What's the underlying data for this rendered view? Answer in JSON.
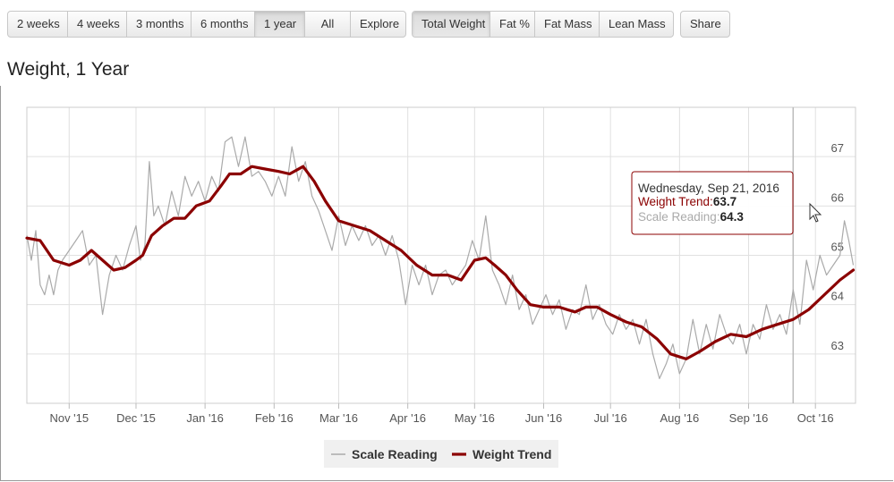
{
  "toolbar": {
    "range_buttons": [
      {
        "label": "2 weeks",
        "active": false
      },
      {
        "label": "4 weeks",
        "active": false
      },
      {
        "label": "3 months",
        "active": false
      },
      {
        "label": "6 months",
        "active": false
      },
      {
        "label": "1 year",
        "active": true
      },
      {
        "label": "All",
        "active": false
      },
      {
        "label": "Explore",
        "active": false
      }
    ],
    "metric_buttons": [
      {
        "label": "Total Weight",
        "active": true
      },
      {
        "label": "Fat %",
        "active": false
      },
      {
        "label": "Fat Mass",
        "active": false
      },
      {
        "label": "Lean Mass",
        "active": false
      }
    ],
    "share_label": "Share"
  },
  "page_title": "Weight, 1 Year",
  "tooltip": {
    "date": "Wednesday, Sep 21, 2016",
    "trend_label": "Weight Trend",
    "trend_value": "63.7",
    "scale_label": "Scale Reading",
    "scale_value": "64.3"
  },
  "colors": {
    "trend": "#8b0000",
    "scale": "#aaaaaa",
    "grid": "#e0e0e0",
    "crosshair": "#bbbbbb"
  },
  "chart_data": {
    "type": "line",
    "title": "",
    "xlabel": "",
    "ylabel": "",
    "x_range": [
      "2015-10-13",
      "2016-10-19"
    ],
    "ylim": [
      62.0,
      68.0
    ],
    "y_ticks": [
      63,
      64,
      65,
      66,
      67
    ],
    "x_ticks": [
      {
        "date": "2015-11-01",
        "label": "Nov '15"
      },
      {
        "date": "2015-12-01",
        "label": "Dec '15"
      },
      {
        "date": "2016-01-01",
        "label": "Jan '16"
      },
      {
        "date": "2016-02-01",
        "label": "Feb '16"
      },
      {
        "date": "2016-03-01",
        "label": "Mar '16"
      },
      {
        "date": "2016-04-01",
        "label": "Apr '16"
      },
      {
        "date": "2016-05-01",
        "label": "May '16"
      },
      {
        "date": "2016-06-01",
        "label": "Jun '16"
      },
      {
        "date": "2016-07-01",
        "label": "Jul '16"
      },
      {
        "date": "2016-08-01",
        "label": "Aug '16"
      },
      {
        "date": "2016-09-01",
        "label": "Sep '16"
      },
      {
        "date": "2016-10-01",
        "label": "Oct '16"
      }
    ],
    "grid": true,
    "legend_position": "bottom-center",
    "crosshair_date": "2016-09-21",
    "series": [
      {
        "name": "Scale Reading",
        "points": [
          [
            "2015-10-13",
            65.4
          ],
          [
            "2015-10-15",
            64.9
          ],
          [
            "2015-10-17",
            65.5
          ],
          [
            "2015-10-19",
            64.4
          ],
          [
            "2015-10-21",
            64.2
          ],
          [
            "2015-10-23",
            64.6
          ],
          [
            "2015-10-25",
            64.2
          ],
          [
            "2015-10-27",
            64.7
          ],
          [
            "2015-10-29",
            64.9
          ],
          [
            "2015-11-01",
            65.1
          ],
          [
            "2015-11-04",
            65.3
          ],
          [
            "2015-11-07",
            65.5
          ],
          [
            "2015-11-10",
            64.8
          ],
          [
            "2015-11-13",
            65.0
          ],
          [
            "2015-11-16",
            63.8
          ],
          [
            "2015-11-19",
            64.6
          ],
          [
            "2015-11-22",
            65.0
          ],
          [
            "2015-11-25",
            64.7
          ],
          [
            "2015-11-28",
            65.2
          ],
          [
            "2015-12-01",
            65.6
          ],
          [
            "2015-12-03",
            64.9
          ],
          [
            "2015-12-05",
            65.2
          ],
          [
            "2015-12-07",
            66.9
          ],
          [
            "2015-12-09",
            65.8
          ],
          [
            "2015-12-11",
            66.0
          ],
          [
            "2015-12-14",
            65.6
          ],
          [
            "2015-12-17",
            66.3
          ],
          [
            "2015-12-20",
            65.8
          ],
          [
            "2015-12-23",
            66.6
          ],
          [
            "2015-12-26",
            66.2
          ],
          [
            "2015-12-29",
            66.5
          ],
          [
            "2016-01-01",
            66.1
          ],
          [
            "2016-01-04",
            66.6
          ],
          [
            "2016-01-07",
            66.3
          ],
          [
            "2016-01-10",
            67.3
          ],
          [
            "2016-01-13",
            67.4
          ],
          [
            "2016-01-16",
            66.8
          ],
          [
            "2016-01-19",
            67.4
          ],
          [
            "2016-01-22",
            66.6
          ],
          [
            "2016-01-25",
            66.7
          ],
          [
            "2016-01-28",
            66.5
          ],
          [
            "2016-01-31",
            66.2
          ],
          [
            "2016-02-03",
            66.6
          ],
          [
            "2016-02-06",
            66.2
          ],
          [
            "2016-02-09",
            67.2
          ],
          [
            "2016-02-12",
            66.5
          ],
          [
            "2016-02-15",
            66.9
          ],
          [
            "2016-02-18",
            66.2
          ],
          [
            "2016-02-21",
            65.9
          ],
          [
            "2016-02-24",
            65.5
          ],
          [
            "2016-02-27",
            65.1
          ],
          [
            "2016-03-01",
            65.8
          ],
          [
            "2016-03-04",
            65.2
          ],
          [
            "2016-03-07",
            65.6
          ],
          [
            "2016-03-10",
            65.3
          ],
          [
            "2016-03-13",
            65.6
          ],
          [
            "2016-03-16",
            65.2
          ],
          [
            "2016-03-19",
            65.4
          ],
          [
            "2016-03-22",
            65.0
          ],
          [
            "2016-03-25",
            65.4
          ],
          [
            "2016-03-28",
            64.9
          ],
          [
            "2016-03-31",
            64.0
          ],
          [
            "2016-04-03",
            64.8
          ],
          [
            "2016-04-06",
            64.4
          ],
          [
            "2016-04-09",
            64.8
          ],
          [
            "2016-04-12",
            64.2
          ],
          [
            "2016-04-15",
            64.6
          ],
          [
            "2016-04-18",
            64.7
          ],
          [
            "2016-04-21",
            64.4
          ],
          [
            "2016-04-24",
            64.6
          ],
          [
            "2016-04-27",
            64.8
          ],
          [
            "2016-04-30",
            65.3
          ],
          [
            "2016-05-03",
            64.9
          ],
          [
            "2016-05-06",
            65.8
          ],
          [
            "2016-05-09",
            64.7
          ],
          [
            "2016-05-12",
            64.4
          ],
          [
            "2016-05-15",
            64.0
          ],
          [
            "2016-05-18",
            64.6
          ],
          [
            "2016-05-21",
            63.9
          ],
          [
            "2016-05-24",
            64.2
          ],
          [
            "2016-05-27",
            63.6
          ],
          [
            "2016-05-30",
            63.9
          ],
          [
            "2016-06-02",
            64.2
          ],
          [
            "2016-06-05",
            63.8
          ],
          [
            "2016-06-08",
            64.1
          ],
          [
            "2016-06-11",
            63.5
          ],
          [
            "2016-06-14",
            63.9
          ],
          [
            "2016-06-17",
            63.8
          ],
          [
            "2016-06-20",
            64.4
          ],
          [
            "2016-06-23",
            63.7
          ],
          [
            "2016-06-26",
            64.0
          ],
          [
            "2016-06-29",
            63.6
          ],
          [
            "2016-07-02",
            63.4
          ],
          [
            "2016-07-05",
            63.8
          ],
          [
            "2016-07-08",
            63.5
          ],
          [
            "2016-07-11",
            63.7
          ],
          [
            "2016-07-14",
            63.2
          ],
          [
            "2016-07-17",
            63.7
          ],
          [
            "2016-07-20",
            63.0
          ],
          [
            "2016-07-23",
            62.5
          ],
          [
            "2016-07-26",
            62.8
          ],
          [
            "2016-07-29",
            63.2
          ],
          [
            "2016-08-01",
            62.6
          ],
          [
            "2016-08-04",
            62.9
          ],
          [
            "2016-08-07",
            63.7
          ],
          [
            "2016-08-10",
            63.0
          ],
          [
            "2016-08-13",
            63.6
          ],
          [
            "2016-08-16",
            63.1
          ],
          [
            "2016-08-19",
            63.8
          ],
          [
            "2016-08-22",
            63.4
          ],
          [
            "2016-08-25",
            63.2
          ],
          [
            "2016-08-28",
            63.6
          ],
          [
            "2016-08-31",
            63.0
          ],
          [
            "2016-09-03",
            63.6
          ],
          [
            "2016-09-06",
            63.3
          ],
          [
            "2016-09-09",
            64.0
          ],
          [
            "2016-09-12",
            63.5
          ],
          [
            "2016-09-15",
            63.8
          ],
          [
            "2016-09-18",
            63.4
          ],
          [
            "2016-09-21",
            64.3
          ],
          [
            "2016-09-24",
            63.6
          ],
          [
            "2016-09-27",
            64.9
          ],
          [
            "2016-09-30",
            64.3
          ],
          [
            "2016-10-03",
            65.0
          ],
          [
            "2016-10-06",
            64.6
          ],
          [
            "2016-10-09",
            64.8
          ],
          [
            "2016-10-12",
            65.0
          ],
          [
            "2016-10-14",
            65.7
          ],
          [
            "2016-10-16",
            65.3
          ],
          [
            "2016-10-18",
            64.8
          ]
        ]
      },
      {
        "name": "Weight Trend",
        "points": [
          [
            "2015-10-13",
            65.35
          ],
          [
            "2015-10-19",
            65.3
          ],
          [
            "2015-10-25",
            64.9
          ],
          [
            "2015-11-01",
            64.8
          ],
          [
            "2015-11-06",
            64.9
          ],
          [
            "2015-11-11",
            65.1
          ],
          [
            "2015-11-16",
            64.9
          ],
          [
            "2015-11-21",
            64.7
          ],
          [
            "2015-11-26",
            64.75
          ],
          [
            "2015-12-01",
            64.9
          ],
          [
            "2015-12-04",
            65.0
          ],
          [
            "2015-12-08",
            65.4
          ],
          [
            "2015-12-13",
            65.6
          ],
          [
            "2015-12-18",
            65.75
          ],
          [
            "2015-12-23",
            65.75
          ],
          [
            "2015-12-28",
            66.0
          ],
          [
            "2016-01-03",
            66.1
          ],
          [
            "2016-01-08",
            66.4
          ],
          [
            "2016-01-12",
            66.65
          ],
          [
            "2016-01-17",
            66.65
          ],
          [
            "2016-01-22",
            66.8
          ],
          [
            "2016-01-28",
            66.75
          ],
          [
            "2016-02-03",
            66.7
          ],
          [
            "2016-02-08",
            66.65
          ],
          [
            "2016-02-14",
            66.8
          ],
          [
            "2016-02-19",
            66.5
          ],
          [
            "2016-02-24",
            66.1
          ],
          [
            "2016-03-01",
            65.7
          ],
          [
            "2016-03-08",
            65.6
          ],
          [
            "2016-03-15",
            65.5
          ],
          [
            "2016-03-22",
            65.3
          ],
          [
            "2016-03-29",
            65.1
          ],
          [
            "2016-04-05",
            64.8
          ],
          [
            "2016-04-12",
            64.6
          ],
          [
            "2016-04-19",
            64.6
          ],
          [
            "2016-04-25",
            64.5
          ],
          [
            "2016-05-01",
            64.9
          ],
          [
            "2016-05-06",
            64.95
          ],
          [
            "2016-05-10",
            64.8
          ],
          [
            "2016-05-15",
            64.6
          ],
          [
            "2016-05-20",
            64.3
          ],
          [
            "2016-05-26",
            64.0
          ],
          [
            "2016-06-01",
            63.95
          ],
          [
            "2016-06-08",
            63.95
          ],
          [
            "2016-06-15",
            63.85
          ],
          [
            "2016-06-20",
            63.95
          ],
          [
            "2016-06-25",
            63.95
          ],
          [
            "2016-07-01",
            63.8
          ],
          [
            "2016-07-08",
            63.65
          ],
          [
            "2016-07-15",
            63.55
          ],
          [
            "2016-07-22",
            63.3
          ],
          [
            "2016-07-28",
            63.0
          ],
          [
            "2016-08-04",
            62.9
          ],
          [
            "2016-08-10",
            63.05
          ],
          [
            "2016-08-17",
            63.25
          ],
          [
            "2016-08-24",
            63.4
          ],
          [
            "2016-08-31",
            63.35
          ],
          [
            "2016-09-07",
            63.5
          ],
          [
            "2016-09-14",
            63.6
          ],
          [
            "2016-09-21",
            63.7
          ],
          [
            "2016-09-28",
            63.9
          ],
          [
            "2016-10-05",
            64.2
          ],
          [
            "2016-10-12",
            64.5
          ],
          [
            "2016-10-18",
            64.7
          ]
        ]
      }
    ]
  }
}
